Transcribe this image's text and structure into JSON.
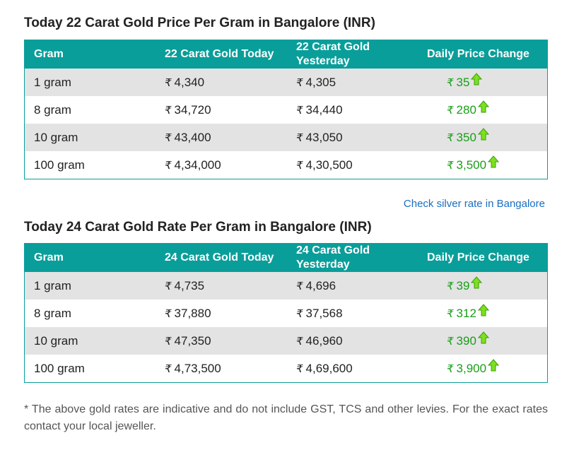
{
  "sections": [
    {
      "title": "Today 22 Carat Gold Price Per Gram in Bangalore (INR)",
      "headers": [
        "Gram",
        "22 Carat Gold Today",
        "22 Carat Gold Yesterday",
        "Daily Price Change"
      ],
      "rows": [
        {
          "gram": "1 gram",
          "today": "4,340",
          "yesterday": "4,305",
          "change": "35"
        },
        {
          "gram": "8 gram",
          "today": "34,720",
          "yesterday": "34,440",
          "change": "280"
        },
        {
          "gram": "10 gram",
          "today": "43,400",
          "yesterday": "43,050",
          "change": "350"
        },
        {
          "gram": "100 gram",
          "today": "4,34,000",
          "yesterday": "4,30,500",
          "change": "3,500"
        }
      ]
    },
    {
      "title": "Today 24 Carat Gold Rate Per Gram in Bangalore (INR)",
      "headers": [
        "Gram",
        "24 Carat Gold Today",
        "24 Carat Gold Yesterday",
        "Daily Price Change"
      ],
      "rows": [
        {
          "gram": "1 gram",
          "today": "4,735",
          "yesterday": "4,696",
          "change": "39"
        },
        {
          "gram": "8 gram",
          "today": "37,880",
          "yesterday": "37,568",
          "change": "312"
        },
        {
          "gram": "10 gram",
          "today": "47,350",
          "yesterday": "46,960",
          "change": "390"
        },
        {
          "gram": "100 gram",
          "today": "4,73,500",
          "yesterday": "4,69,600",
          "change": "3,900"
        }
      ]
    }
  ],
  "currency_symbol": "₹",
  "silver_link": "Check silver rate in Bangalore",
  "note": "* The above gold rates are indicative and do not include GST, TCS and other levies. For the exact rates contact your local jeweller.",
  "colors": {
    "header_bg": "#0a9e9a",
    "row_alt_bg": "#e3e3e3",
    "change_color": "#1a9e1a",
    "link_color": "#1a6ec1"
  },
  "icons": {
    "change_indicator": "up-arrow-icon"
  }
}
